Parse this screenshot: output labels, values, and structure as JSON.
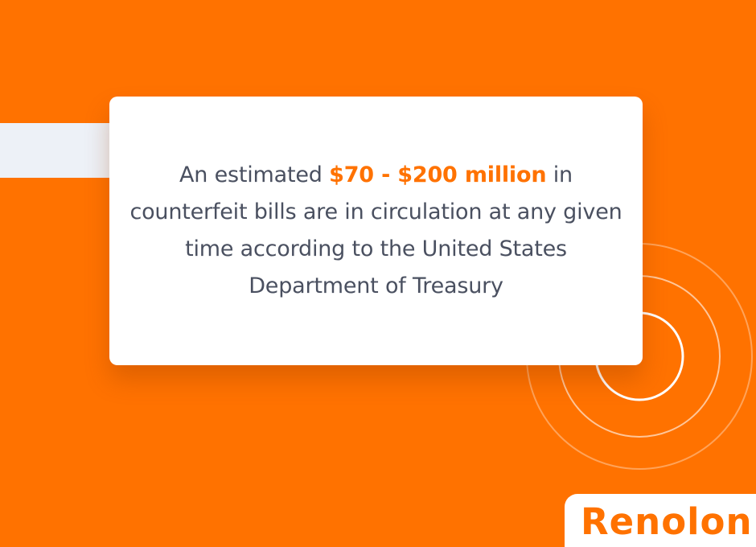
{
  "quote": {
    "prefix": "An estimated ",
    "highlight": "$70 - $200 million",
    "suffix_line1": " in",
    "line2": "counterfeit bills are in circulation at any given",
    "line3": "time according to the United States",
    "line4": "Department of Treasury"
  },
  "brand": {
    "name": "Renolon"
  },
  "colors": {
    "background": "#FF7200",
    "card": "#FFFFFF",
    "text": "#4A5060",
    "accent": "#FF7200",
    "band": "#EDF1F7"
  }
}
